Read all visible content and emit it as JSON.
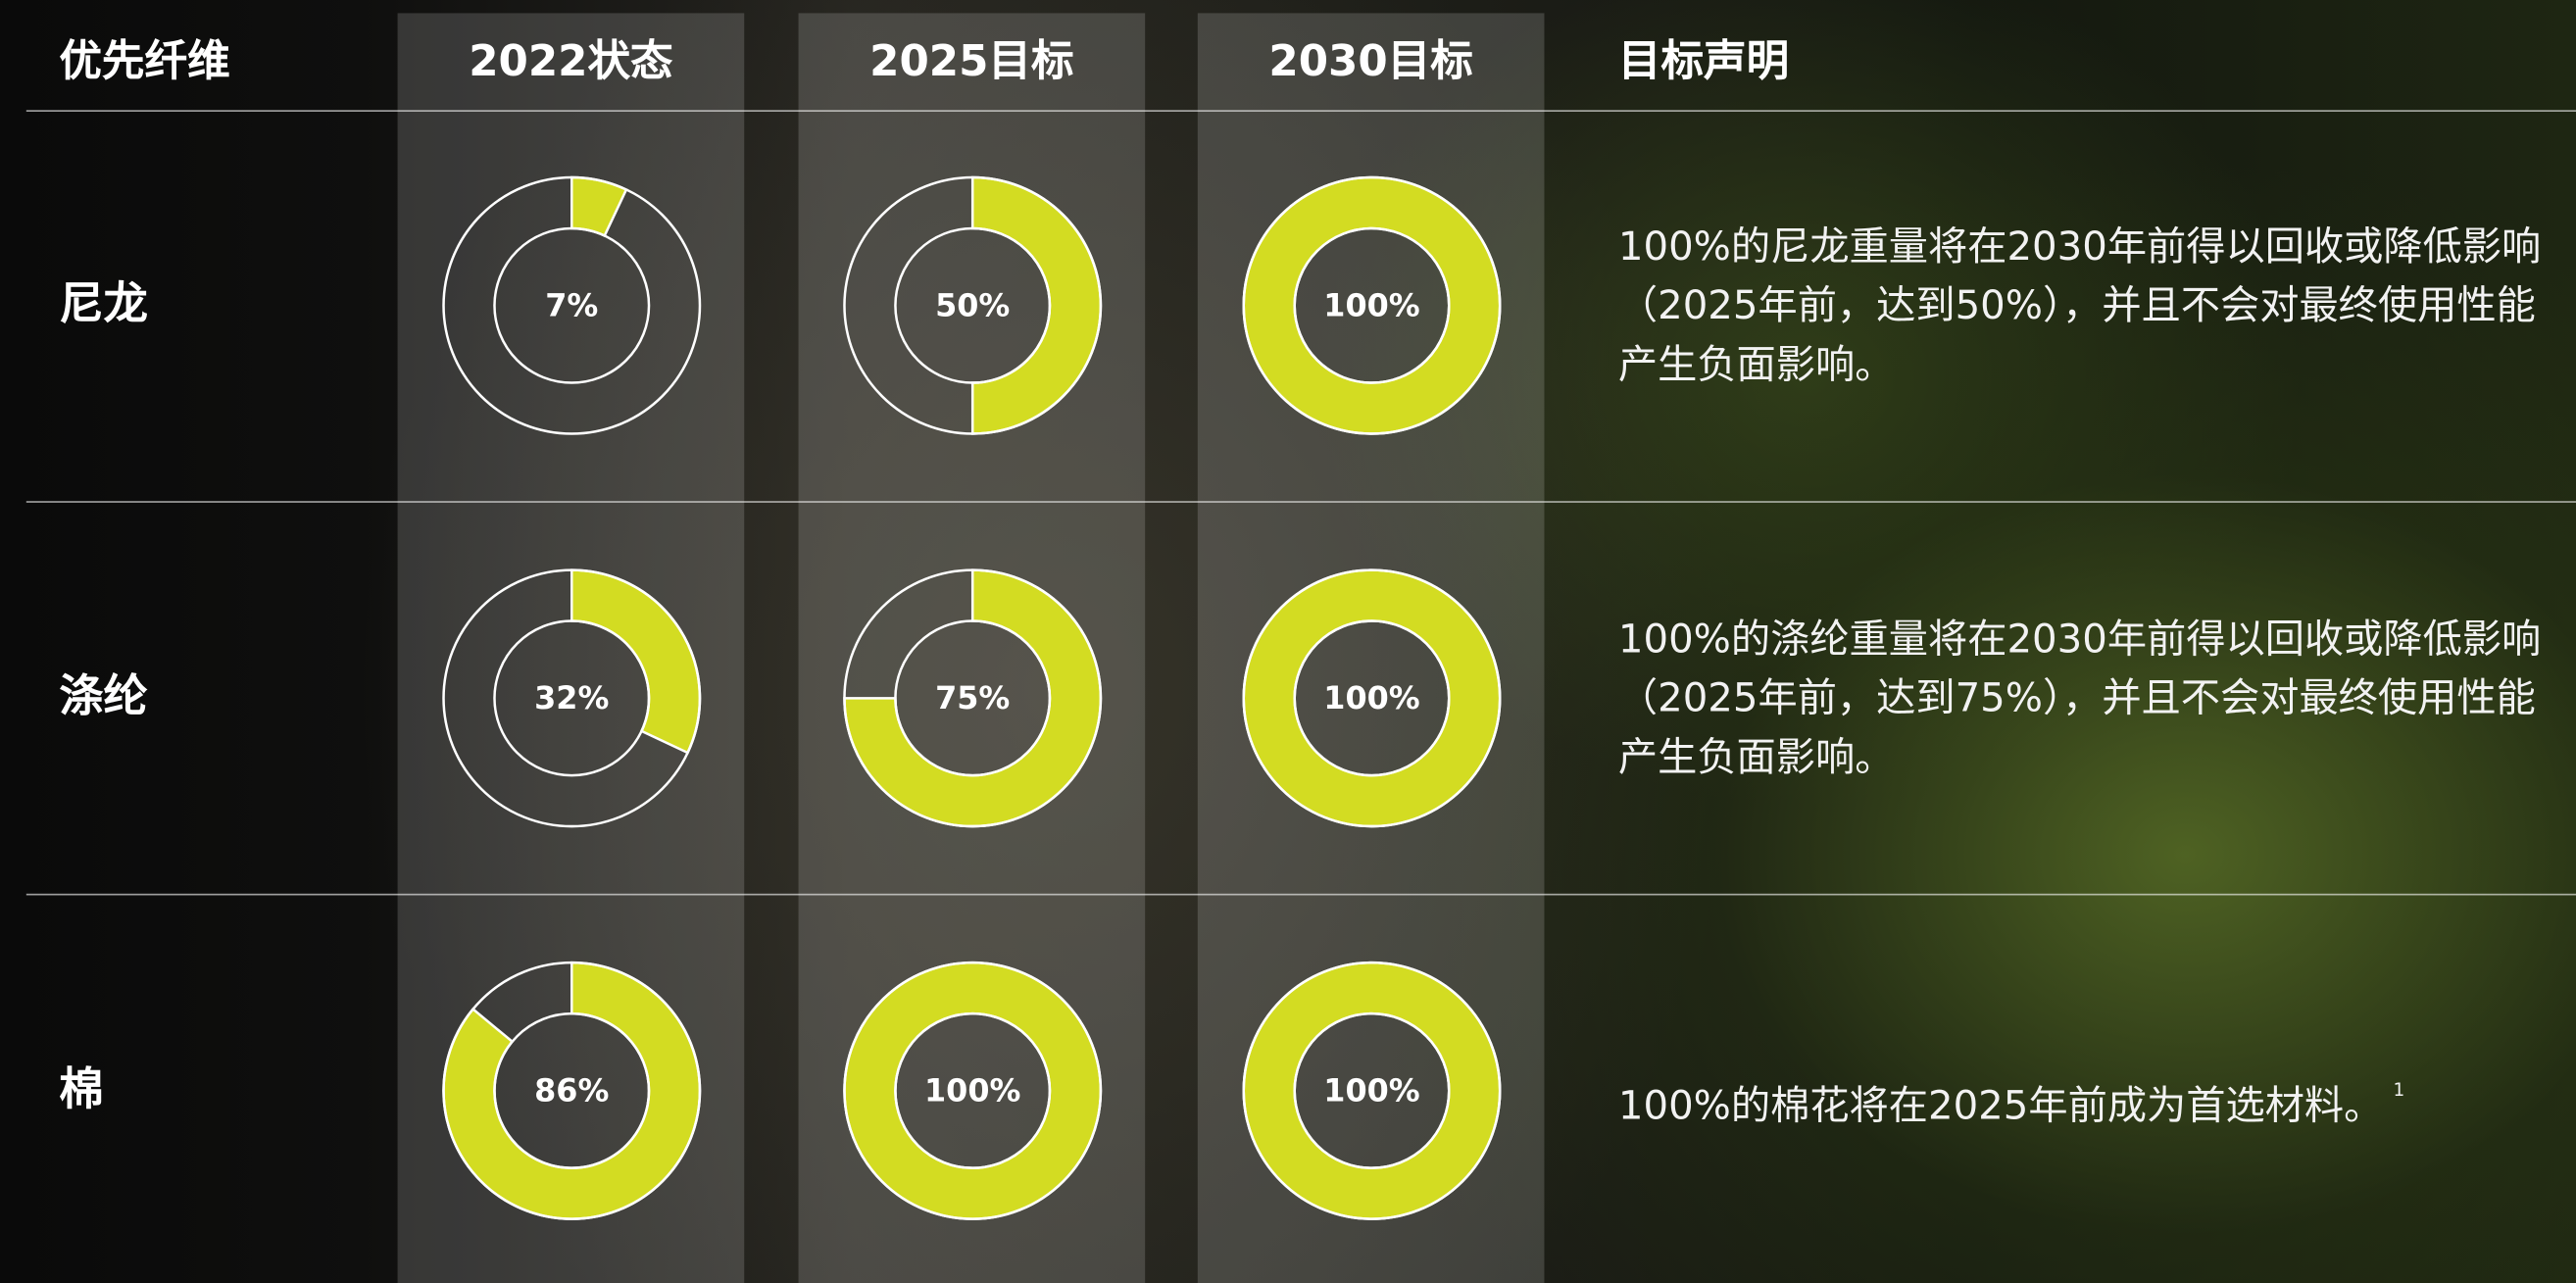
{
  "table": {
    "headers": [
      "优先纤维",
      "2022状态",
      "2025目标",
      "2030目标",
      "目标声明"
    ],
    "rows": [
      {
        "fiber": "尼龙",
        "values": [
          7,
          50,
          100
        ],
        "value_labels": [
          "7%",
          "50%",
          "100%"
        ],
        "statement": "100%的尼龙重量将在2030年前得以回收或降低影响（2025年前，达到50%），并且不会对最终使用性能产生负面影响。"
      },
      {
        "fiber": "涤纶",
        "values": [
          32,
          75,
          100
        ],
        "value_labels": [
          "32%",
          "75%",
          "100%"
        ],
        "statement": "100%的涤纶重量将在2030年前得以回收或降低影响（2025年前，达到75%），并且不会对最终使用性能产生负面影响。"
      },
      {
        "fiber": "棉",
        "values": [
          86,
          100,
          100
        ],
        "value_labels": [
          "86%",
          "100%",
          "100%"
        ],
        "statement": "100%的棉花将在2025年前成为首选材料。",
        "footnote": "1"
      }
    ]
  }
}
